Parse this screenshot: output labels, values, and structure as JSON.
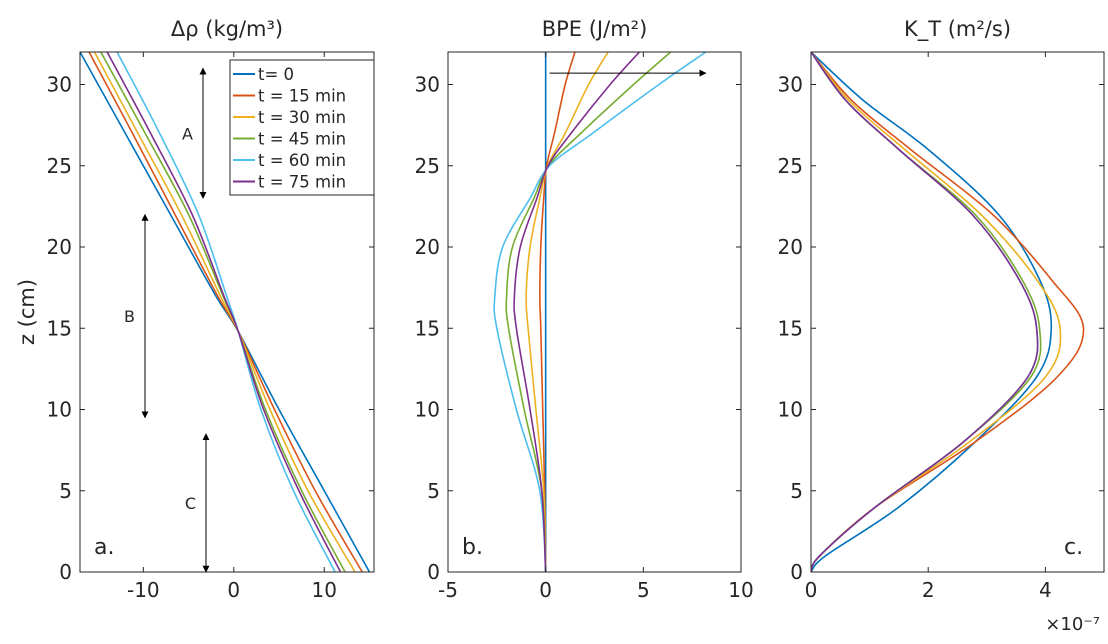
{
  "ylabel": "z (cm)",
  "legend": [
    "t= 0",
    "t = 15 min",
    "t = 30 min",
    "t = 45 min",
    "t = 60 min",
    "t = 75 min"
  ],
  "colors": [
    "#0072BD",
    "#D95319",
    "#EDB120",
    "#77AC30",
    "#4DBEEE",
    "#7E2F8E"
  ],
  "chart_data": [
    {
      "type": "line",
      "title": "Δρ (kg/m³)",
      "panel_label": "a.",
      "xlim": [
        -17,
        15.5
      ],
      "ylim": [
        0,
        32
      ],
      "xticks": [
        -10,
        0,
        10
      ],
      "xtick_labels": [
        "-10",
        "0",
        "10"
      ],
      "yticks": [
        0,
        5,
        10,
        15,
        20,
        25,
        30
      ],
      "ytick_labels": [
        "0",
        "5",
        "10",
        "15",
        "20",
        "25",
        "30"
      ],
      "legend_position": "top-right",
      "annotations": [
        {
          "text": "A",
          "z_range": [
            23,
            31
          ]
        },
        {
          "text": "B",
          "z_range": [
            9.5,
            22
          ]
        },
        {
          "text": "C",
          "z_range": [
            0,
            8.5
          ]
        }
      ],
      "series": [
        {
          "name": "t= 0",
          "x": [
            -17.0,
            -12.0,
            -7.0,
            -2.0,
            0.5,
            5.0,
            10.0,
            15.0
          ],
          "z": [
            32,
            27,
            22,
            17,
            14.8,
            10,
            5,
            0
          ]
        },
        {
          "name": "t = 15 min",
          "x": [
            -16.0,
            -11.2,
            -6.5,
            -1.8,
            0.5,
            4.5,
            9.0,
            14.2
          ],
          "z": [
            32,
            27,
            22,
            17,
            14.8,
            10,
            5,
            0
          ]
        },
        {
          "name": "t = 30 min",
          "x": [
            -15.4,
            -10.6,
            -5.8,
            -1.5,
            0.5,
            4.0,
            8.2,
            13.4
          ],
          "z": [
            32,
            27,
            22,
            17,
            14.8,
            10,
            5,
            0
          ]
        },
        {
          "name": "t = 45 min",
          "x": [
            -14.7,
            -9.8,
            -5.0,
            -1.2,
            0.5,
            3.5,
            7.5,
            12.3
          ],
          "z": [
            32,
            27,
            22,
            17,
            14.8,
            10,
            5,
            0
          ]
        },
        {
          "name": "t = 60 min",
          "x": [
            -12.9,
            -8.2,
            -3.9,
            -0.8,
            0.5,
            3.0,
            6.6,
            11.2
          ],
          "z": [
            32,
            27,
            22,
            17,
            14.8,
            10,
            5,
            0
          ]
        },
        {
          "name": "t = 75 min",
          "x": [
            -14.0,
            -9.2,
            -4.6,
            -1.1,
            0.5,
            3.3,
            7.2,
            11.8
          ],
          "z": [
            32,
            27,
            22,
            17,
            14.8,
            10,
            5,
            0
          ]
        }
      ]
    },
    {
      "type": "line",
      "title": "BPE (J/m²)",
      "panel_label": "b.",
      "xlim": [
        -5,
        10
      ],
      "ylim": [
        0,
        32
      ],
      "xticks": [
        -5,
        0,
        5,
        10
      ],
      "xtick_labels": [
        "-5",
        "0",
        "5",
        "10"
      ],
      "yticks": [
        0,
        5,
        10,
        15,
        20,
        25,
        30
      ],
      "ytick_labels": [
        "0",
        "5",
        "10",
        "15",
        "20",
        "25",
        "30"
      ],
      "arrow": {
        "from": [
          0.2,
          30.7
        ],
        "to": [
          8.2,
          30.7
        ]
      },
      "series": [
        {
          "name": "t= 0",
          "x": [
            0,
            0
          ],
          "z": [
            0,
            32
          ]
        },
        {
          "name": "t = 15 min",
          "x": [
            0,
            -0.05,
            -0.15,
            -0.25,
            -0.3,
            -0.25,
            -0.1,
            0.05,
            0.45,
            1.0,
            1.5
          ],
          "z": [
            0,
            5,
            10,
            15,
            17,
            20,
            23,
            25,
            27,
            30,
            32
          ]
        },
        {
          "name": "t = 30 min",
          "x": [
            0,
            -0.1,
            -0.5,
            -0.9,
            -1.0,
            -0.8,
            -0.3,
            0.1,
            1.0,
            2.2,
            3.2
          ],
          "z": [
            0,
            5,
            10,
            15,
            17,
            20,
            23,
            25,
            27,
            30,
            32
          ]
        },
        {
          "name": "t = 45 min",
          "x": [
            0,
            -0.2,
            -1.1,
            -1.9,
            -2.0,
            -1.7,
            -0.6,
            0.15,
            1.8,
            4.5,
            6.4
          ],
          "z": [
            0,
            5,
            10,
            15,
            17,
            20,
            23,
            25,
            27,
            30,
            32
          ]
        },
        {
          "name": "t = 60 min",
          "x": [
            0,
            -0.3,
            -1.5,
            -2.5,
            -2.6,
            -2.2,
            -0.8,
            0.2,
            2.4,
            5.8,
            8.2
          ],
          "z": [
            0,
            5,
            10,
            15,
            17,
            20,
            23,
            25,
            27,
            30,
            32
          ]
        },
        {
          "name": "t = 75 min",
          "x": [
            0,
            -0.2,
            -0.8,
            -1.5,
            -1.6,
            -1.3,
            -0.45,
            0.12,
            1.3,
            3.3,
            4.8
          ],
          "z": [
            0,
            5,
            10,
            15,
            17,
            20,
            23,
            25,
            27,
            30,
            32
          ]
        }
      ]
    },
    {
      "type": "line",
      "title": "K_T (m²/s)",
      "panel_label": "c.",
      "xlim": [
        0,
        5
      ],
      "ylim": [
        0,
        32
      ],
      "xticks": [
        0,
        2,
        4
      ],
      "xtick_labels": [
        "0",
        "2",
        "4"
      ],
      "yticks": [
        0,
        5,
        10,
        15,
        20,
        25,
        30
      ],
      "ytick_labels": [
        "0",
        "5",
        "10",
        "15",
        "20",
        "25",
        "30"
      ],
      "x_multiplier": "×10⁻⁷",
      "series": [
        {
          "name": "t= 0",
          "x": [
            0,
            0.25,
            1.5,
            2.8,
            3.85,
            4.1,
            3.9,
            3.2,
            2.0,
            0.9,
            0
          ],
          "z": [
            0,
            1,
            4,
            8,
            12,
            15,
            18,
            22,
            26,
            29,
            32
          ]
        },
        {
          "name": "t = 15 min",
          "x": [
            0,
            0.15,
            1.1,
            2.8,
            4.2,
            4.65,
            4.1,
            3.1,
            1.7,
            0.7,
            0
          ],
          "z": [
            0,
            1,
            4,
            8,
            12,
            15,
            18,
            22,
            26,
            29,
            32
          ]
        },
        {
          "name": "t = 30 min",
          "x": [
            0,
            0.15,
            1.1,
            2.7,
            4.0,
            4.25,
            3.85,
            2.9,
            1.6,
            0.65,
            0
          ],
          "z": [
            0,
            1,
            4,
            8,
            12,
            15,
            18,
            22,
            26,
            29,
            32
          ]
        },
        {
          "name": "t = 45 min",
          "x": [
            0,
            0.15,
            1.1,
            2.6,
            3.75,
            3.9,
            3.6,
            2.8,
            1.5,
            0.6,
            0
          ],
          "z": [
            0,
            1,
            4,
            8,
            12,
            15,
            18,
            22,
            26,
            29,
            32
          ]
        },
        {
          "name": "t = 60 min",
          "x": [
            0,
            0.15,
            1.1,
            2.6,
            3.7,
            3.85,
            3.55,
            2.75,
            1.5,
            0.6,
            0
          ],
          "z": [
            0,
            1,
            4,
            8,
            12,
            15,
            18,
            22,
            26,
            29,
            32
          ]
        },
        {
          "name": "t = 75 min",
          "x": [
            0,
            0.15,
            1.1,
            2.6,
            3.7,
            3.85,
            3.55,
            2.75,
            1.5,
            0.6,
            0
          ],
          "z": [
            0,
            1,
            4,
            8,
            12,
            15,
            18,
            22,
            26,
            29,
            32
          ]
        }
      ]
    }
  ]
}
